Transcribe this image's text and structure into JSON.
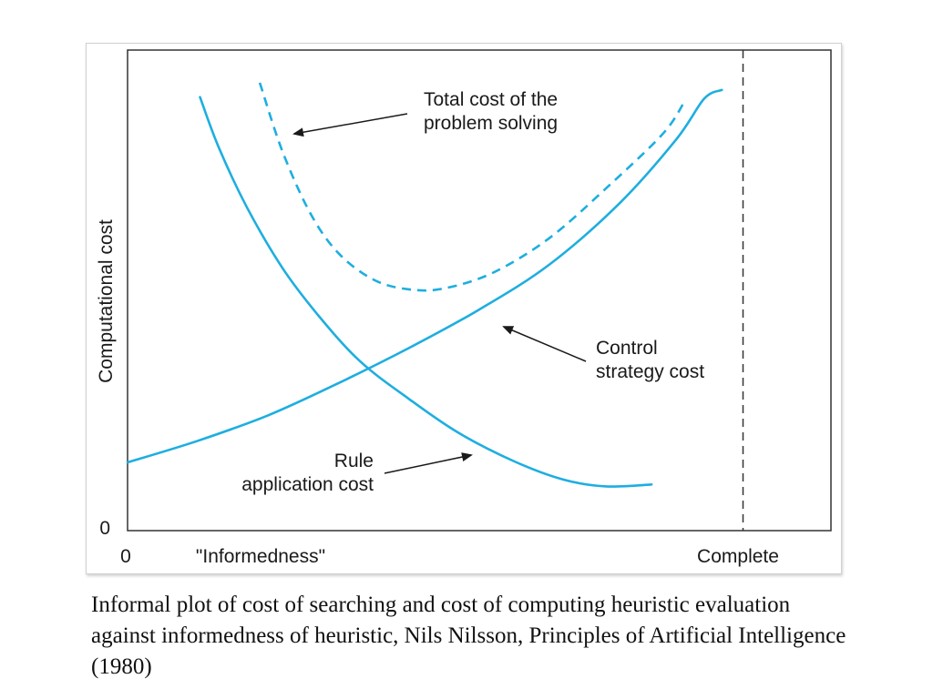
{
  "chart_data": {
    "type": "line",
    "title": "",
    "xlabel": "\"Informedness\"",
    "ylabel": "Computational cost",
    "x_tick_labels": {
      "start": "0",
      "end": "Complete"
    },
    "y_tick_labels": {
      "start": "0"
    },
    "xlim": [
      0,
      1
    ],
    "ylim": [
      0,
      1
    ],
    "grid": false,
    "colors": {
      "curve": "#1eaee0",
      "axis": "#333333",
      "text": "#1a1a1a"
    },
    "series": [
      {
        "name": "Rule application cost",
        "style": "solid",
        "points": [
          [
            0.103,
            0.902
          ],
          [
            0.13,
            0.796
          ],
          [
            0.17,
            0.672
          ],
          [
            0.22,
            0.547
          ],
          [
            0.27,
            0.45
          ],
          [
            0.33,
            0.353
          ],
          [
            0.4,
            0.274
          ],
          [
            0.47,
            0.204
          ],
          [
            0.55,
            0.144
          ],
          [
            0.62,
            0.106
          ],
          [
            0.68,
            0.092
          ],
          [
            0.745,
            0.096
          ]
        ]
      },
      {
        "name": "Control strategy cost",
        "style": "solid",
        "points": [
          [
            0.0,
            0.142
          ],
          [
            0.1,
            0.187
          ],
          [
            0.2,
            0.24
          ],
          [
            0.3,
            0.307
          ],
          [
            0.4,
            0.38
          ],
          [
            0.5,
            0.46
          ],
          [
            0.6,
            0.554
          ],
          [
            0.7,
            0.682
          ],
          [
            0.78,
            0.814
          ],
          [
            0.82,
            0.899
          ],
          [
            0.845,
            0.917
          ]
        ]
      },
      {
        "name": "Total cost of the problem solving",
        "style": "dashed",
        "points": [
          [
            0.188,
            0.932
          ],
          [
            0.22,
            0.79
          ],
          [
            0.26,
            0.66
          ],
          [
            0.3,
            0.577
          ],
          [
            0.35,
            0.522
          ],
          [
            0.4,
            0.502
          ],
          [
            0.45,
            0.504
          ],
          [
            0.52,
            0.537
          ],
          [
            0.6,
            0.609
          ],
          [
            0.68,
            0.712
          ],
          [
            0.76,
            0.824
          ],
          [
            0.79,
            0.888
          ]
        ]
      }
    ],
    "complete_marker_x": 0.875,
    "annotations": [
      {
        "lines": [
          "Total cost of the",
          "problem solving"
        ],
        "target_series": 2
      },
      {
        "lines": [
          "Control",
          "strategy cost"
        ],
        "target_series": 1
      },
      {
        "lines": [
          "Rule",
          "application cost"
        ],
        "target_series": 0
      }
    ]
  },
  "caption": "Informal plot of cost of searching and cost of computing heuristic evaluation against informedness of heuristic, Nils Nilsson, Principles of Artificial Intelligence (1980)"
}
